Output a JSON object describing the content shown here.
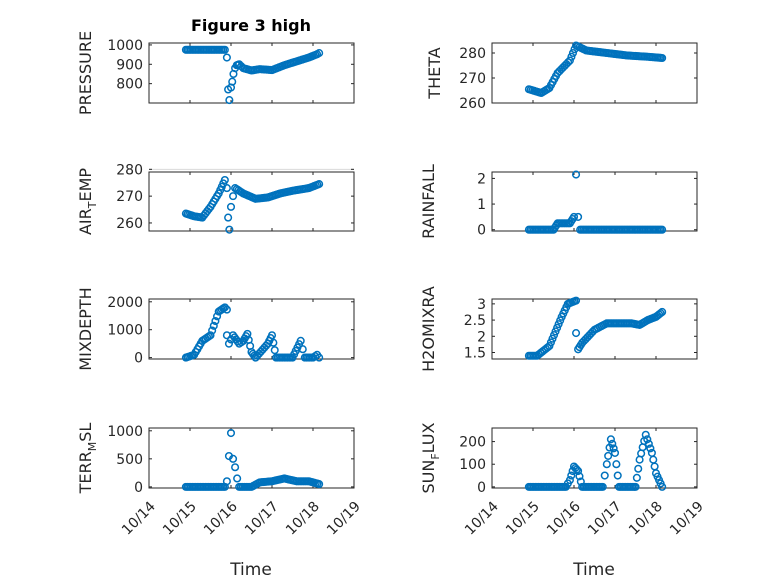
{
  "chart_data": {
    "type": "scatter",
    "title": "Figure 3 high",
    "marker_color": "#0072bd",
    "x_ticks": [
      "10/14",
      "10/15",
      "10/16",
      "10/17",
      "10/18",
      "10/19"
    ],
    "x_range": [
      0,
      5
    ],
    "grid": "on",
    "subplots": [
      {
        "name": "pressure",
        "ylabel": "PRESSURE",
        "yticks": [
          800,
          900,
          1000
        ],
        "ylim": [
          700,
          1010
        ],
        "segments": [
          [
            [
              0.9,
              975
            ],
            [
              1.6,
              975
            ],
            [
              1.85,
              975
            ]
          ],
          [
            [
              1.9,
              935
            ],
            [
              1.93,
              770
            ],
            [
              1.96,
              715
            ],
            [
              2.0,
              780
            ],
            [
              2.03,
              810
            ],
            [
              2.06,
              850
            ],
            [
              2.1,
              880
            ],
            [
              2.14,
              895
            ],
            [
              2.2,
              900
            ],
            [
              2.3,
              880
            ],
            [
              2.5,
              868
            ],
            [
              2.7,
              875
            ],
            [
              3.0,
              870
            ],
            [
              3.3,
              895
            ],
            [
              3.6,
              915
            ],
            [
              3.9,
              935
            ],
            [
              4.1,
              952
            ],
            [
              4.15,
              958
            ]
          ]
        ]
      },
      {
        "name": "theta",
        "ylabel": "THETA",
        "yticks": [
          260,
          270,
          280
        ],
        "ylim": [
          260,
          284
        ],
        "segments": [
          [
            [
              0.9,
              265.5
            ],
            [
              1.2,
              264
            ],
            [
              1.4,
              266
            ],
            [
              1.6,
              272
            ],
            [
              1.9,
              277
            ],
            [
              2.05,
              283
            ],
            [
              2.3,
              281
            ],
            [
              2.8,
              280
            ],
            [
              3.3,
              279
            ],
            [
              3.8,
              278.5
            ],
            [
              4.15,
              278
            ]
          ]
        ]
      },
      {
        "name": "air_temp",
        "ylabel": "AIR_TEMP",
        "ylabel_main": "AIR",
        "ylabel_sub": "T",
        "ylabel_rest": "EMP",
        "yticks": [
          260,
          270,
          280
        ],
        "ylim": [
          257,
          279
        ],
        "segments": [
          [
            [
              0.9,
              263.5
            ],
            [
              1.1,
              262.5
            ],
            [
              1.3,
              262
            ],
            [
              1.5,
              266
            ],
            [
              1.7,
              271
            ],
            [
              1.85,
              276
            ]
          ],
          [
            [
              1.9,
              273
            ],
            [
              1.93,
              262
            ],
            [
              1.96,
              257.5
            ],
            [
              2.0,
              266
            ],
            [
              2.05,
              270
            ],
            [
              2.1,
              273
            ],
            [
              2.3,
              271
            ],
            [
              2.6,
              269
            ],
            [
              2.9,
              269.5
            ],
            [
              3.2,
              271
            ],
            [
              3.5,
              272
            ],
            [
              3.9,
              273
            ],
            [
              4.15,
              274.5
            ]
          ]
        ]
      },
      {
        "name": "rainfall",
        "ylabel": "RAINFALL",
        "yticks": [
          0,
          1,
          2
        ],
        "ylim": [
          -0.05,
          2.25
        ],
        "segments": [
          [
            [
              0.9,
              0
            ],
            [
              1.5,
              0
            ],
            [
              1.6,
              0.25
            ],
            [
              1.9,
              0.25
            ],
            [
              2.0,
              0.5
            ],
            [
              2.05,
              2.15
            ],
            [
              2.1,
              0.5
            ],
            [
              2.15,
              0
            ],
            [
              4.15,
              0
            ]
          ]
        ]
      },
      {
        "name": "mixdepth",
        "ylabel": "MIXDEPTH",
        "yticks": [
          0,
          1000,
          2000
        ],
        "ylim": [
          -50,
          2100
        ],
        "segments": [
          [
            [
              0.9,
              0
            ],
            [
              1.1,
              100
            ],
            [
              1.3,
              600
            ],
            [
              1.5,
              800
            ],
            [
              1.7,
              1650
            ],
            [
              1.85,
              1800
            ],
            [
              1.9,
              1720
            ]
          ],
          [
            [
              1.9,
              800
            ],
            [
              1.95,
              500
            ],
            [
              2.05,
              800
            ],
            [
              2.2,
              500
            ],
            [
              2.3,
              600
            ],
            [
              2.4,
              850
            ],
            [
              2.5,
              200
            ],
            [
              2.6,
              0
            ],
            [
              2.9,
              500
            ],
            [
              3.0,
              800
            ],
            [
              3.1,
              0
            ],
            [
              3.5,
              0
            ],
            [
              3.7,
              600
            ],
            [
              3.8,
              0
            ],
            [
              4.0,
              0
            ],
            [
              4.1,
              100
            ],
            [
              4.15,
              0
            ]
          ]
        ]
      },
      {
        "name": "h2omixra",
        "ylabel": "H2OMIXRA",
        "yticks": [
          1.5,
          2,
          2.5,
          3
        ],
        "ylim": [
          1.3,
          3.15
        ],
        "segments": [
          [
            [
              0.9,
              1.4
            ],
            [
              1.1,
              1.4
            ],
            [
              1.4,
              1.7
            ],
            [
              1.7,
              2.6
            ],
            [
              1.85,
              3.0
            ],
            [
              2.05,
              3.1
            ]
          ],
          [
            [
              2.05,
              2.1
            ],
            [
              2.1,
              1.6
            ],
            [
              2.2,
              1.8
            ],
            [
              2.5,
              2.2
            ],
            [
              2.8,
              2.4
            ],
            [
              3.0,
              2.4
            ],
            [
              3.4,
              2.4
            ],
            [
              3.6,
              2.35
            ],
            [
              3.8,
              2.5
            ],
            [
              4.0,
              2.6
            ],
            [
              4.15,
              2.75
            ]
          ]
        ]
      },
      {
        "name": "terr_msl",
        "ylabel": "TERR_MSL",
        "ylabel_main": "TERR",
        "ylabel_sub": "M",
        "ylabel_rest": "SL",
        "yticks": [
          0,
          500,
          1000
        ],
        "ylim": [
          -20,
          1050
        ],
        "segments": [
          [
            [
              0.9,
              0
            ],
            [
              1.85,
              0
            ]
          ],
          [
            [
              1.9,
              100
            ],
            [
              1.95,
              550
            ],
            [
              2.0,
              960
            ],
            [
              2.05,
              500
            ],
            [
              2.1,
              350
            ],
            [
              2.15,
              150
            ],
            [
              2.2,
              0
            ],
            [
              2.5,
              0
            ],
            [
              2.7,
              80
            ],
            [
              3.0,
              100
            ],
            [
              3.3,
              150
            ],
            [
              3.6,
              100
            ],
            [
              3.9,
              100
            ],
            [
              4.15,
              50
            ]
          ]
        ]
      },
      {
        "name": "sun_flux",
        "ylabel": "SUN_FLUX",
        "ylabel_main": "SUN",
        "ylabel_sub": "F",
        "ylabel_rest": "LUX",
        "yticks": [
          0,
          100,
          200
        ],
        "ylim": [
          -5,
          260
        ],
        "segments": [
          [
            [
              0.9,
              0
            ],
            [
              1.8,
              0
            ],
            [
              1.9,
              30
            ],
            [
              2.0,
              90
            ],
            [
              2.1,
              70
            ],
            [
              2.2,
              0
            ],
            [
              2.7,
              0
            ],
            [
              2.8,
              100
            ],
            [
              2.9,
              210
            ],
            [
              3.0,
              150
            ],
            [
              3.1,
              0
            ],
            [
              3.5,
              0
            ],
            [
              3.6,
              120
            ],
            [
              3.75,
              230
            ],
            [
              3.9,
              150
            ],
            [
              4.0,
              60
            ],
            [
              4.15,
              0
            ]
          ]
        ]
      }
    ],
    "xlabel": "Time"
  }
}
